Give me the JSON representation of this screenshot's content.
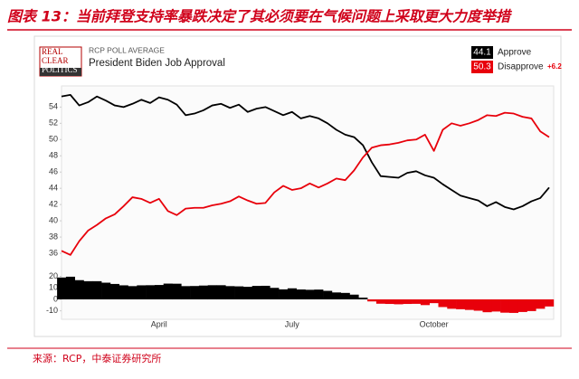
{
  "header": {
    "title": "图表 13：当前拜登支持率暴跌决定了其必须要在气候问题上采取更大力度举措"
  },
  "footer": {
    "source": "来源：RCP，中泰证券研究所"
  },
  "chart_data": {
    "type": "line",
    "logo": [
      "REAL",
      "CLEAR",
      "POLITICS"
    ],
    "subtitle": "RCP POLL AVERAGE",
    "title": "President Biden Job Approval",
    "categories": [
      null,
      null,
      null,
      null,
      null,
      null,
      null,
      null,
      null,
      null,
      null,
      "April",
      null,
      null,
      null,
      null,
      null,
      null,
      null,
      null,
      null,
      null,
      null,
      null,
      null,
      null,
      "July",
      null,
      null,
      null,
      null,
      null,
      null,
      null,
      null,
      null,
      null,
      null,
      null,
      null,
      null,
      null,
      "October",
      null,
      null,
      null,
      null,
      null,
      null,
      null,
      null,
      null,
      null,
      null,
      null,
      null
    ],
    "series": [
      {
        "name": "Approve",
        "color": "#000000",
        "latest": 44.1,
        "values": [
          55.3,
          55.5,
          54.2,
          54.6,
          55.3,
          54.8,
          54.2,
          54.0,
          54.4,
          54.9,
          54.5,
          55.2,
          54.9,
          54.3,
          53.0,
          53.2,
          53.6,
          54.2,
          54.4,
          53.9,
          54.3,
          53.4,
          53.8,
          54.0,
          53.5,
          53.0,
          53.4,
          52.6,
          52.9,
          52.6,
          52.0,
          51.2,
          50.6,
          50.3,
          49.3,
          47.2,
          45.5,
          45.4,
          45.3,
          45.9,
          46.1,
          45.6,
          45.3,
          44.5,
          43.8,
          43.1,
          42.8,
          42.5,
          41.8,
          42.3,
          41.7,
          41.4,
          41.8,
          42.4,
          42.8,
          44.1
        ]
      },
      {
        "name": "Disapprove",
        "color": "#e8000b",
        "latest": 50.3,
        "values": [
          36.3,
          35.8,
          37.5,
          38.8,
          39.5,
          40.3,
          40.8,
          41.8,
          42.9,
          42.7,
          42.2,
          42.7,
          41.2,
          40.7,
          41.5,
          41.6,
          41.6,
          41.9,
          42.1,
          42.4,
          43.0,
          42.5,
          42.1,
          42.2,
          43.5,
          44.3,
          43.8,
          44.0,
          44.6,
          44.1,
          44.6,
          45.2,
          45.0,
          46.2,
          47.8,
          49.0,
          49.3,
          49.4,
          49.6,
          49.9,
          50.0,
          50.6,
          48.6,
          51.2,
          52.0,
          51.7,
          52.0,
          52.4,
          53.0,
          52.9,
          53.3,
          53.2,
          52.8,
          52.6,
          51.0,
          50.3
        ]
      }
    ],
    "spread_label": "+6.2",
    "ylim": [
      34,
      56.6
    ],
    "yticks": [
      36,
      38,
      40,
      42,
      44,
      46,
      48,
      50,
      52,
      54
    ],
    "spread": {
      "values": [
        19.0,
        19.7,
        16.7,
        15.8,
        15.8,
        14.5,
        13.4,
        12.2,
        11.5,
        12.2,
        12.3,
        12.5,
        13.7,
        13.6,
        11.5,
        11.6,
        12.0,
        12.3,
        12.3,
        11.5,
        11.3,
        10.9,
        11.7,
        11.8,
        10.0,
        8.7,
        9.6,
        8.6,
        8.3,
        8.5,
        7.4,
        6.0,
        5.6,
        4.1,
        1.5,
        -1.8,
        -3.8,
        -4.0,
        -4.3,
        -4.0,
        -3.9,
        -5.0,
        -3.3,
        -6.7,
        -8.2,
        -8.6,
        -9.2,
        -9.9,
        -11.2,
        -10.6,
        -11.6,
        -11.8,
        -11.0,
        -10.2,
        -8.2,
        -6.2
      ],
      "positive_color": "#000000",
      "negative_color": "#e8000b",
      "ylim": [
        -15,
        22
      ],
      "yticks": [
        20,
        10,
        0,
        -10
      ]
    }
  }
}
